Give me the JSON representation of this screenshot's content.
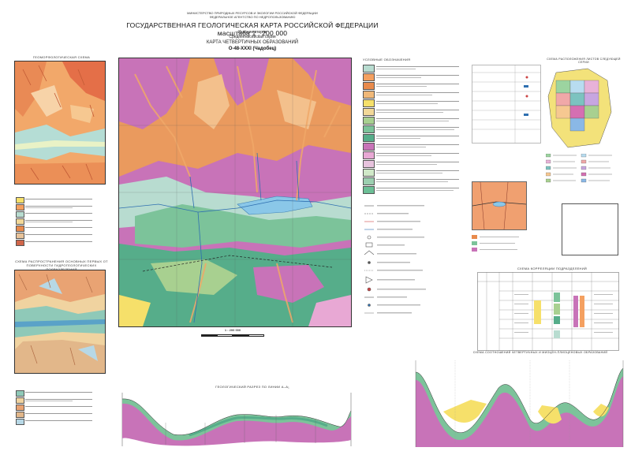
{
  "header": {
    "ministry_line1": "МИНИСТЕРСТВО ПРИРОДНЫХ РЕСУРСОВ И ЭКОЛОГИИ РОССИЙСКОЙ ФЕДЕРАЦИИ",
    "ministry_line2": "ФЕДЕРАЛЬНОЕ АГЕНТСТВО ПО НЕДРОПОЛЬЗОВАНИЮ",
    "title": "ГОСУДАРСТВЕННАЯ ГЕОЛОГИЧЕСКАЯ КАРТА РОССИЙСКОЙ ФЕДЕРАЦИИ  масштаба 1 : 200 000",
    "edition": "Издание второе",
    "series": "Среднеенисейская серия",
    "map_name": "КАРТА ЧЕТВЕРТИЧНЫХ ОБРАЗОВАНИЙ",
    "sheet": "O-48-XXXI (Чадобец)"
  },
  "left_panel": {
    "geomorph_title": "ГЕОМОРФОЛОГИЧЕСКАЯ СХЕМА",
    "hydro_title": "СХЕМА РАСПРОСТРАНЕНИЯ ОСНОВНЫХ ПЕРВЫХ ОТ ПОВЕРХНОСТИ ГИДРОГЕОЛОГИЧЕСКИХ ПОДРАЗДЕЛЕНИЙ"
  },
  "legend": {
    "title": "УСЛОВНЫЕ ОБОЗНАЧЕНИЯ",
    "swatch_colors": [
      "#b8dcd0",
      "#f4a060",
      "#e88a4c",
      "#f0b878",
      "#f6e06a",
      "#f2d898",
      "#a8d090",
      "#7cc39a",
      "#56ad8a",
      "#c873b8",
      "#e8a8d4",
      "#e7c2dd",
      "#d0e8c8",
      "#9ccfb0",
      "#6cbf96"
    ]
  },
  "index_map": {
    "title": "СХЕМА РАСПОЛОЖЕНИЯ ЛИСТОВ СЛЕДУЮЩЕЙ СЕРИИ"
  },
  "strat_table": {
    "title": "СХЕМА КОРРЕЛЯЦИИ ПОДРАЗДЕЛЕНИЙ"
  },
  "cross_section": {
    "title": "ГЕОЛОГИЧЕСКИЙ РАЗРЕЗ ПО ЛИНИИ А–А₁"
  },
  "correlation_scheme": {
    "title": "СХЕМА СООТНОШЕНИЙ ЧЕТВЕРТИЧНЫХ И МИОЦЕН-ПЛИОЦЕНОВЫХ ОБРАЗОВАНИЙ"
  },
  "scale": {
    "label": "1 : 200 000"
  }
}
